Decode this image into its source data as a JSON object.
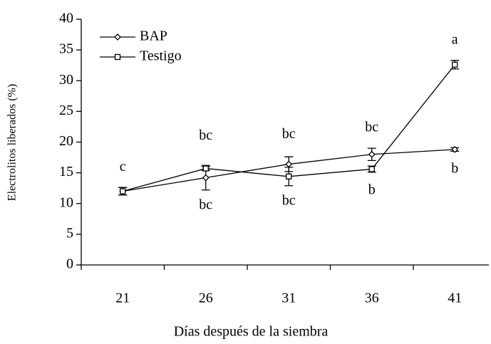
{
  "chart_data": {
    "type": "line",
    "xlabel": "Días después de la siembra",
    "ylabel": "Electrolitos liberados (%)",
    "categories": [
      "21",
      "26",
      "31",
      "36",
      "41"
    ],
    "series": [
      {
        "name": "BAP",
        "color": "#000000",
        "marker": "diamond",
        "values": [
          12.0,
          14.2,
          16.4,
          18.0,
          18.8
        ],
        "errors": [
          0.6,
          2.0,
          1.2,
          1.0,
          0.3
        ],
        "annotations": [
          null,
          "bc",
          "bc",
          "bc",
          "b"
        ]
      },
      {
        "name": "Testigo",
        "color": "#000000",
        "marker": "square",
        "values": [
          12.0,
          15.7,
          14.4,
          15.6,
          32.6
        ],
        "errors": [
          0.6,
          0.3,
          1.5,
          0.5,
          0.7
        ],
        "annotations": [
          "c",
          "bc",
          "bc",
          "b",
          "a"
        ]
      }
    ],
    "ylim": [
      0,
      40
    ],
    "yticks": [
      0,
      5,
      10,
      15,
      20,
      25,
      30,
      35,
      40
    ],
    "legend": "upper left"
  }
}
